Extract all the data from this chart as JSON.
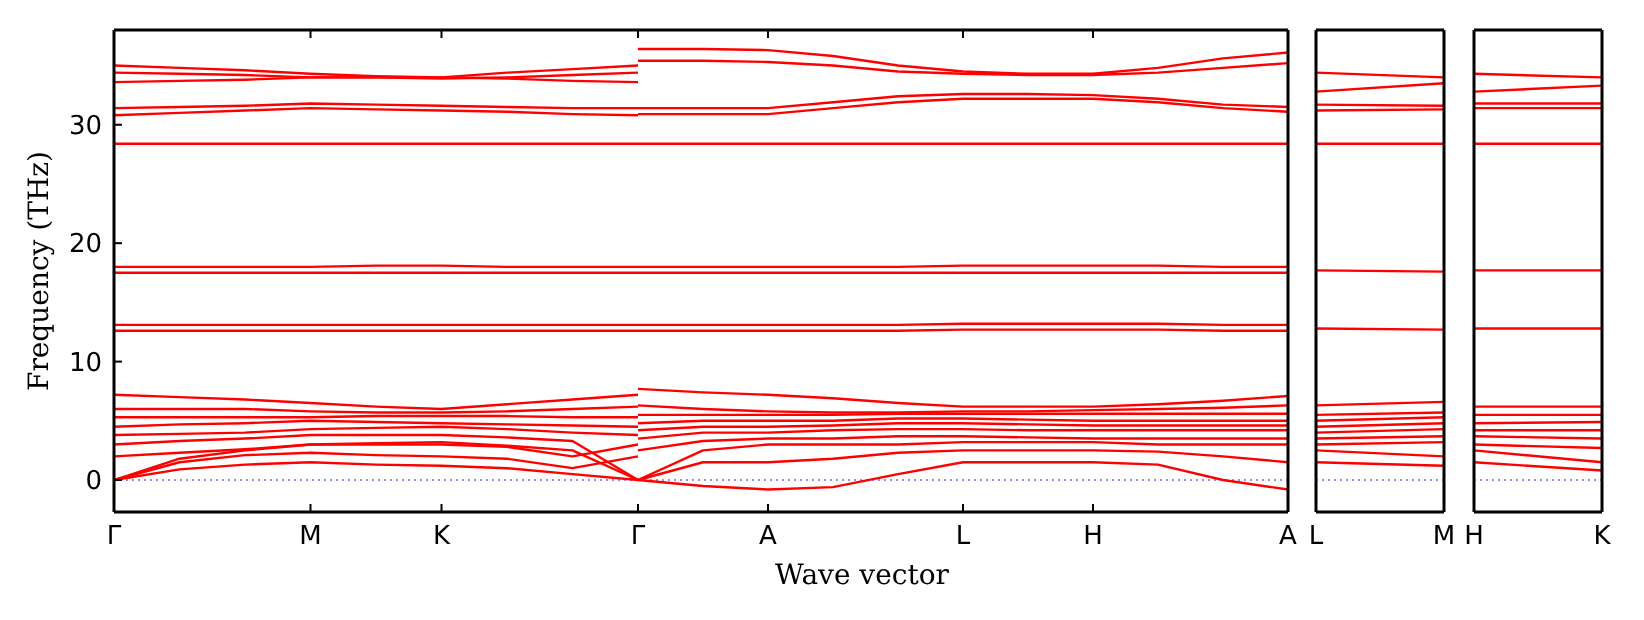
{
  "chart_data": [
    {
      "type": "line",
      "xlabel": "Wave vector",
      "ylabel": "Frequency (THz)",
      "ylim": [
        -2.7,
        38
      ],
      "yticks": [
        0,
        10,
        20,
        30
      ],
      "categories": [
        "Γ",
        null,
        null,
        "M",
        null,
        "K",
        null,
        null,
        "Γ"
      ],
      "ref_lines": [
        {
          "axis": "y",
          "value": 0,
          "color": "#7070e0",
          "line_style": "dotted"
        }
      ],
      "series": [
        {
          "color": "#ff0000",
          "values": [
            0,
            0.9,
            1.3,
            1.5,
            1.3,
            1.2,
            1.0,
            0.5,
            0
          ]
        },
        {
          "color": "#ff0000",
          "values": [
            0,
            1.5,
            2.1,
            2.3,
            2.1,
            2,
            1.8,
            1.0,
            2
          ]
        },
        {
          "color": "#ff0000",
          "values": [
            0,
            1.8,
            2.5,
            3,
            3,
            3,
            2.8,
            2.0,
            3
          ]
        },
        {
          "color": "#ff0000",
          "values": [
            2,
            2.3,
            2.6,
            3,
            3.1,
            3.2,
            2.9,
            2.5,
            0
          ]
        },
        {
          "color": "#ff0000",
          "values": [
            3,
            3.3,
            3.5,
            3.8,
            3.8,
            3.8,
            3.6,
            3.3,
            0
          ]
        },
        {
          "color": "#ff0000",
          "values": [
            3.8,
            3.9,
            4,
            4.3,
            4.4,
            4.5,
            4.3,
            4.0,
            3.8
          ]
        },
        {
          "color": "#ff0000",
          "values": [
            4.5,
            4.7,
            4.8,
            5,
            4.9,
            4.8,
            4.7,
            4.6,
            4.5
          ]
        },
        {
          "color": "#ff0000",
          "values": [
            5.3,
            5.3,
            5.3,
            5.3,
            5.4,
            5.4,
            5.4,
            5.3,
            5.3
          ]
        },
        {
          "color": "#ff0000",
          "values": [
            6,
            6,
            6,
            5.8,
            5.7,
            5.7,
            5.8,
            6,
            6.2
          ]
        },
        {
          "color": "#ff0000",
          "values": [
            7.2,
            7,
            6.8,
            6.5,
            6.2,
            6,
            6.4,
            6.8,
            7.2
          ]
        },
        {
          "color": "#ff0000",
          "values": [
            12.6,
            12.6,
            12.6,
            12.6,
            12.6,
            12.6,
            12.6,
            12.6,
            12.6
          ]
        },
        {
          "color": "#ff0000",
          "values": [
            13.1,
            13.1,
            13.1,
            13.1,
            13.1,
            13.1,
            13.1,
            13.1,
            13.1
          ]
        },
        {
          "color": "#ff0000",
          "values": [
            17.5,
            17.5,
            17.5,
            17.5,
            17.5,
            17.5,
            17.5,
            17.5,
            17.5
          ]
        },
        {
          "color": "#ff0000",
          "values": [
            18,
            18,
            18,
            18,
            18.1,
            18.1,
            18,
            18,
            18
          ]
        },
        {
          "color": "#ff0000",
          "values": [
            28.4,
            28.4,
            28.4,
            28.4,
            28.4,
            28.4,
            28.4,
            28.4,
            28.4
          ]
        },
        {
          "color": "#ff0000",
          "values": [
            30.8,
            31,
            31.2,
            31.4,
            31.3,
            31.2,
            31.1,
            30.9,
            30.8
          ]
        },
        {
          "color": "#ff0000",
          "values": [
            31.4,
            31.5,
            31.6,
            31.8,
            31.7,
            31.6,
            31.5,
            31.4,
            31.4
          ]
        },
        {
          "color": "#ff0000",
          "values": [
            33.6,
            33.7,
            33.8,
            34,
            34,
            34,
            33.9,
            33.7,
            33.6
          ]
        },
        {
          "color": "#ff0000",
          "values": [
            34.4,
            34.3,
            34.2,
            34,
            34,
            33.9,
            34,
            34.2,
            34.4
          ]
        },
        {
          "color": "#ff0000",
          "values": [
            35,
            34.8,
            34.6,
            34.3,
            34.1,
            34,
            34.4,
            34.7,
            35
          ]
        }
      ]
    },
    {
      "type": "line",
      "tick_labels": "x",
      "ylim": [
        -2.7,
        38
      ],
      "yticks": [
        0,
        10,
        20,
        30
      ],
      "categories": [
        null,
        null,
        "A",
        null,
        null,
        "L",
        null,
        "H",
        null,
        null,
        "A"
      ],
      "ref_lines": [
        {
          "axis": "y",
          "value": 0,
          "color": "#7070e0",
          "line_style": "dotted"
        }
      ],
      "series": [
        {
          "color": "#ff0000",
          "values": [
            0,
            -0.5,
            -0.8,
            -0.6,
            0.5,
            1.5,
            1.5,
            1.5,
            1.3,
            0,
            -0.8
          ]
        },
        {
          "color": "#ff0000",
          "values": [
            0,
            1.5,
            1.5,
            1.8,
            2.3,
            2.5,
            2.5,
            2.5,
            2.4,
            2.0,
            1.5
          ]
        },
        {
          "color": "#ff0000",
          "values": [
            0,
            2.5,
            3,
            3,
            3,
            3.2,
            3.2,
            3.2,
            3,
            3,
            3
          ]
        },
        {
          "color": "#ff0000",
          "values": [
            2.5,
            3.3,
            3.5,
            3.5,
            3.7,
            3.7,
            3.6,
            3.5,
            3.5,
            3.5,
            3.5
          ]
        },
        {
          "color": "#ff0000",
          "values": [
            3.5,
            4,
            4,
            4.2,
            4.3,
            4.3,
            4.2,
            4.2,
            4.2,
            4.2,
            4.2
          ]
        },
        {
          "color": "#ff0000",
          "values": [
            4.2,
            4.5,
            4.5,
            4.6,
            4.8,
            4.8,
            4.7,
            4.6,
            4.6,
            4.6,
            4.6
          ]
        },
        {
          "color": "#ff0000",
          "values": [
            4.8,
            5,
            5,
            5,
            5.2,
            5.2,
            5.1,
            5,
            5,
            5,
            5
          ]
        },
        {
          "color": "#ff0000",
          "values": [
            5.5,
            5.5,
            5.5,
            5.5,
            5.6,
            5.6,
            5.6,
            5.6,
            5.6,
            5.6,
            5.6
          ]
        },
        {
          "color": "#ff0000",
          "values": [
            6.3,
            6,
            5.8,
            5.7,
            5.7,
            5.8,
            5.8,
            5.9,
            6,
            6.1,
            6.3
          ]
        },
        {
          "color": "#ff0000",
          "values": [
            7.7,
            7.4,
            7.2,
            6.9,
            6.5,
            6.2,
            6.2,
            6.2,
            6.4,
            6.7,
            7.1
          ]
        },
        {
          "color": "#ff0000",
          "values": [
            12.6,
            12.6,
            12.6,
            12.6,
            12.6,
            12.7,
            12.7,
            12.7,
            12.7,
            12.6,
            12.6
          ]
        },
        {
          "color": "#ff0000",
          "values": [
            13.1,
            13.1,
            13.1,
            13.1,
            13.1,
            13.2,
            13.2,
            13.2,
            13.2,
            13.1,
            13.1
          ]
        },
        {
          "color": "#ff0000",
          "values": [
            17.5,
            17.5,
            17.5,
            17.5,
            17.5,
            17.5,
            17.5,
            17.5,
            17.5,
            17.5,
            17.5
          ]
        },
        {
          "color": "#ff0000",
          "values": [
            18,
            18,
            18,
            18,
            18,
            18.1,
            18.1,
            18.1,
            18.1,
            18,
            18
          ]
        },
        {
          "color": "#ff0000",
          "values": [
            28.4,
            28.4,
            28.4,
            28.4,
            28.4,
            28.4,
            28.4,
            28.4,
            28.4,
            28.4,
            28.4
          ]
        },
        {
          "color": "#ff0000",
          "values": [
            30.9,
            30.9,
            30.9,
            31.4,
            31.9,
            32.2,
            32.2,
            32.2,
            31.9,
            31.4,
            31.1
          ]
        },
        {
          "color": "#ff0000",
          "values": [
            31.4,
            31.4,
            31.4,
            31.9,
            32.4,
            32.6,
            32.6,
            32.5,
            32.2,
            31.7,
            31.5
          ]
        },
        {
          "color": "#ff0000",
          "values": [
            35.4,
            35.4,
            35.3,
            35,
            34.5,
            34.3,
            34.2,
            34.2,
            34.4,
            34.8,
            35.2
          ]
        },
        {
          "color": "#ff0000",
          "values": [
            36.4,
            36.4,
            36.3,
            35.8,
            35,
            34.5,
            34.3,
            34.3,
            34.8,
            35.6,
            36.1
          ]
        }
      ]
    },
    {
      "type": "line",
      "tick_labels": "x",
      "ylim": [
        -2.7,
        38
      ],
      "yticks": [
        0,
        10,
        20,
        30
      ],
      "categories": [
        "L",
        "M"
      ],
      "ref_lines": [
        {
          "axis": "y",
          "value": 0,
          "color": "#7070e0",
          "line_style": "dotted"
        }
      ],
      "series": [
        {
          "color": "#ff0000",
          "values": [
            1.5,
            1.2
          ]
        },
        {
          "color": "#ff0000",
          "values": [
            2.5,
            2
          ]
        },
        {
          "color": "#ff0000",
          "values": [
            3,
            3.2
          ]
        },
        {
          "color": "#ff0000",
          "values": [
            3.5,
            3.7
          ]
        },
        {
          "color": "#ff0000",
          "values": [
            4,
            4.3
          ]
        },
        {
          "color": "#ff0000",
          "values": [
            4.5,
            4.8
          ]
        },
        {
          "color": "#ff0000",
          "values": [
            5,
            5.3
          ]
        },
        {
          "color": "#ff0000",
          "values": [
            5.5,
            5.7
          ]
        },
        {
          "color": "#ff0000",
          "values": [
            6.3,
            6.6
          ]
        },
        {
          "color": "#ff0000",
          "values": [
            12.8,
            12.7
          ]
        },
        {
          "color": "#ff0000",
          "values": [
            17.7,
            17.6
          ]
        },
        {
          "color": "#ff0000",
          "values": [
            28.4,
            28.4
          ]
        },
        {
          "color": "#ff0000",
          "values": [
            31.2,
            31.3
          ]
        },
        {
          "color": "#ff0000",
          "values": [
            31.7,
            31.6
          ]
        },
        {
          "color": "#ff0000",
          "values": [
            32.8,
            33.5
          ]
        },
        {
          "color": "#ff0000",
          "values": [
            34.4,
            34
          ]
        }
      ]
    },
    {
      "type": "line",
      "tick_labels": "x",
      "ylim": [
        -2.7,
        38
      ],
      "yticks": [
        0,
        10,
        20,
        30
      ],
      "categories": [
        "H",
        "K"
      ],
      "ref_lines": [
        {
          "axis": "y",
          "value": 0,
          "color": "#7070e0",
          "line_style": "dotted"
        }
      ],
      "series": [
        {
          "color": "#ff0000",
          "values": [
            1.5,
            0.8
          ]
        },
        {
          "color": "#ff0000",
          "values": [
            2.5,
            1.5
          ]
        },
        {
          "color": "#ff0000",
          "values": [
            3,
            2.7
          ]
        },
        {
          "color": "#ff0000",
          "values": [
            3.7,
            3.5
          ]
        },
        {
          "color": "#ff0000",
          "values": [
            4.2,
            4.2
          ]
        },
        {
          "color": "#ff0000",
          "values": [
            4.8,
            4.9
          ]
        },
        {
          "color": "#ff0000",
          "values": [
            5.5,
            5.5
          ]
        },
        {
          "color": "#ff0000",
          "values": [
            6.2,
            6.2
          ]
        },
        {
          "color": "#ff0000",
          "values": [
            12.8,
            12.8
          ]
        },
        {
          "color": "#ff0000",
          "values": [
            17.7,
            17.7
          ]
        },
        {
          "color": "#ff0000",
          "values": [
            28.4,
            28.4
          ]
        },
        {
          "color": "#ff0000",
          "values": [
            31.4,
            31.4
          ]
        },
        {
          "color": "#ff0000",
          "values": [
            31.8,
            31.8
          ]
        },
        {
          "color": "#ff0000",
          "values": [
            32.8,
            33.3
          ]
        },
        {
          "color": "#ff0000",
          "values": [
            34.3,
            34
          ]
        }
      ]
    }
  ]
}
